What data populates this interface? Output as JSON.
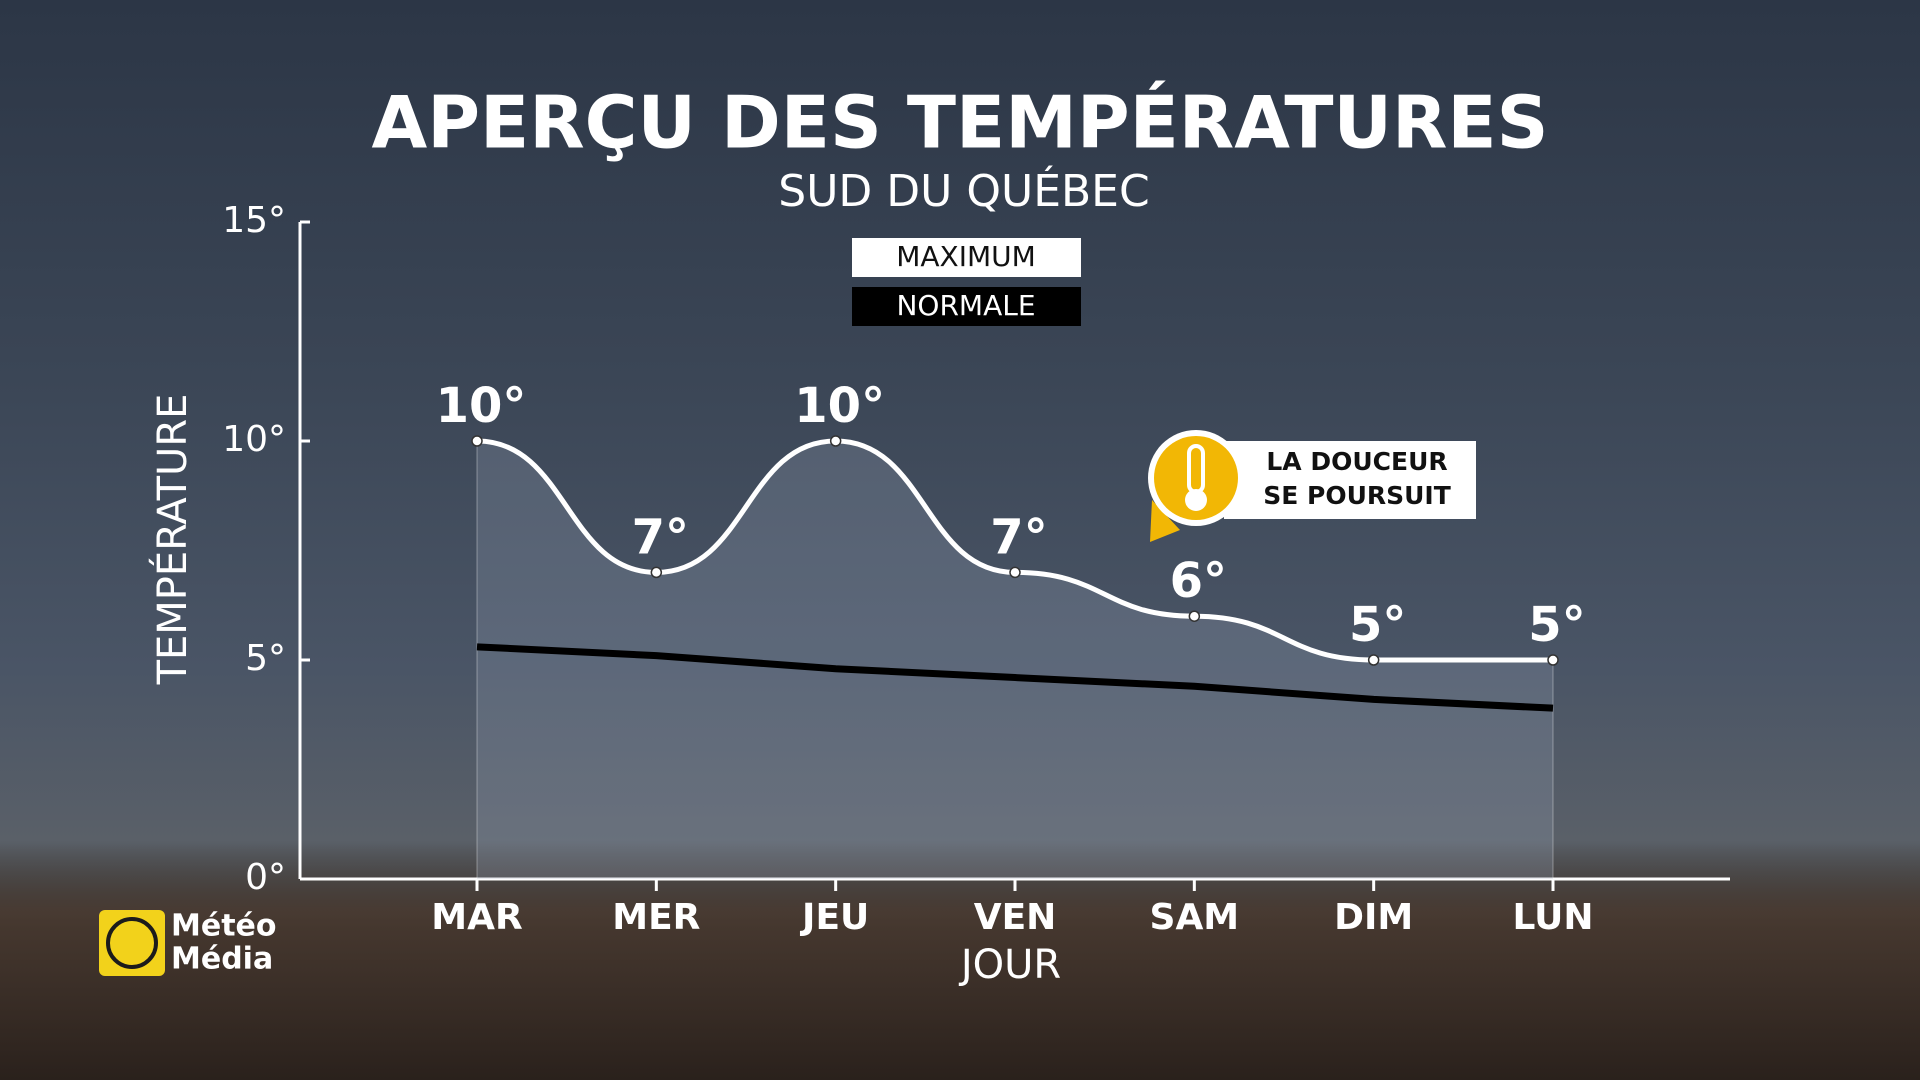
{
  "chart_data": {
    "type": "line",
    "title": "APERÇU DES TEMPÉRATURES",
    "subtitle": "SUD DU QUÉBEC",
    "x_label": "JOUR",
    "y_label": "TEMPÉRATURE",
    "categories": [
      "MAR",
      "MER",
      "JEU",
      "VEN",
      "SAM",
      "DIM",
      "LUN"
    ],
    "series": [
      {
        "name": "MAXIMUM",
        "color": "#ffffff",
        "values": [
          10,
          7,
          10,
          7,
          6,
          5,
          5
        ],
        "value_labels": [
          "10°",
          "7°",
          "10°",
          "7°",
          "6°",
          "5°",
          "5°"
        ]
      },
      {
        "name": "NORMALE",
        "color": "#000000",
        "values": [
          5.3,
          5.1,
          4.8,
          4.6,
          4.4,
          4.1,
          3.9
        ]
      }
    ],
    "ylim": [
      0,
      15
    ],
    "yticks": [
      {
        "value": 0,
        "label": "0°"
      },
      {
        "value": 5,
        "label": "5°"
      },
      {
        "value": 10,
        "label": "10°"
      },
      {
        "value": 15,
        "label": "15°"
      }
    ],
    "annotation": [
      "LA DOUCEUR",
      "SE POURSUIT"
    ]
  },
  "logo": [
    "Météo",
    "Média"
  ]
}
